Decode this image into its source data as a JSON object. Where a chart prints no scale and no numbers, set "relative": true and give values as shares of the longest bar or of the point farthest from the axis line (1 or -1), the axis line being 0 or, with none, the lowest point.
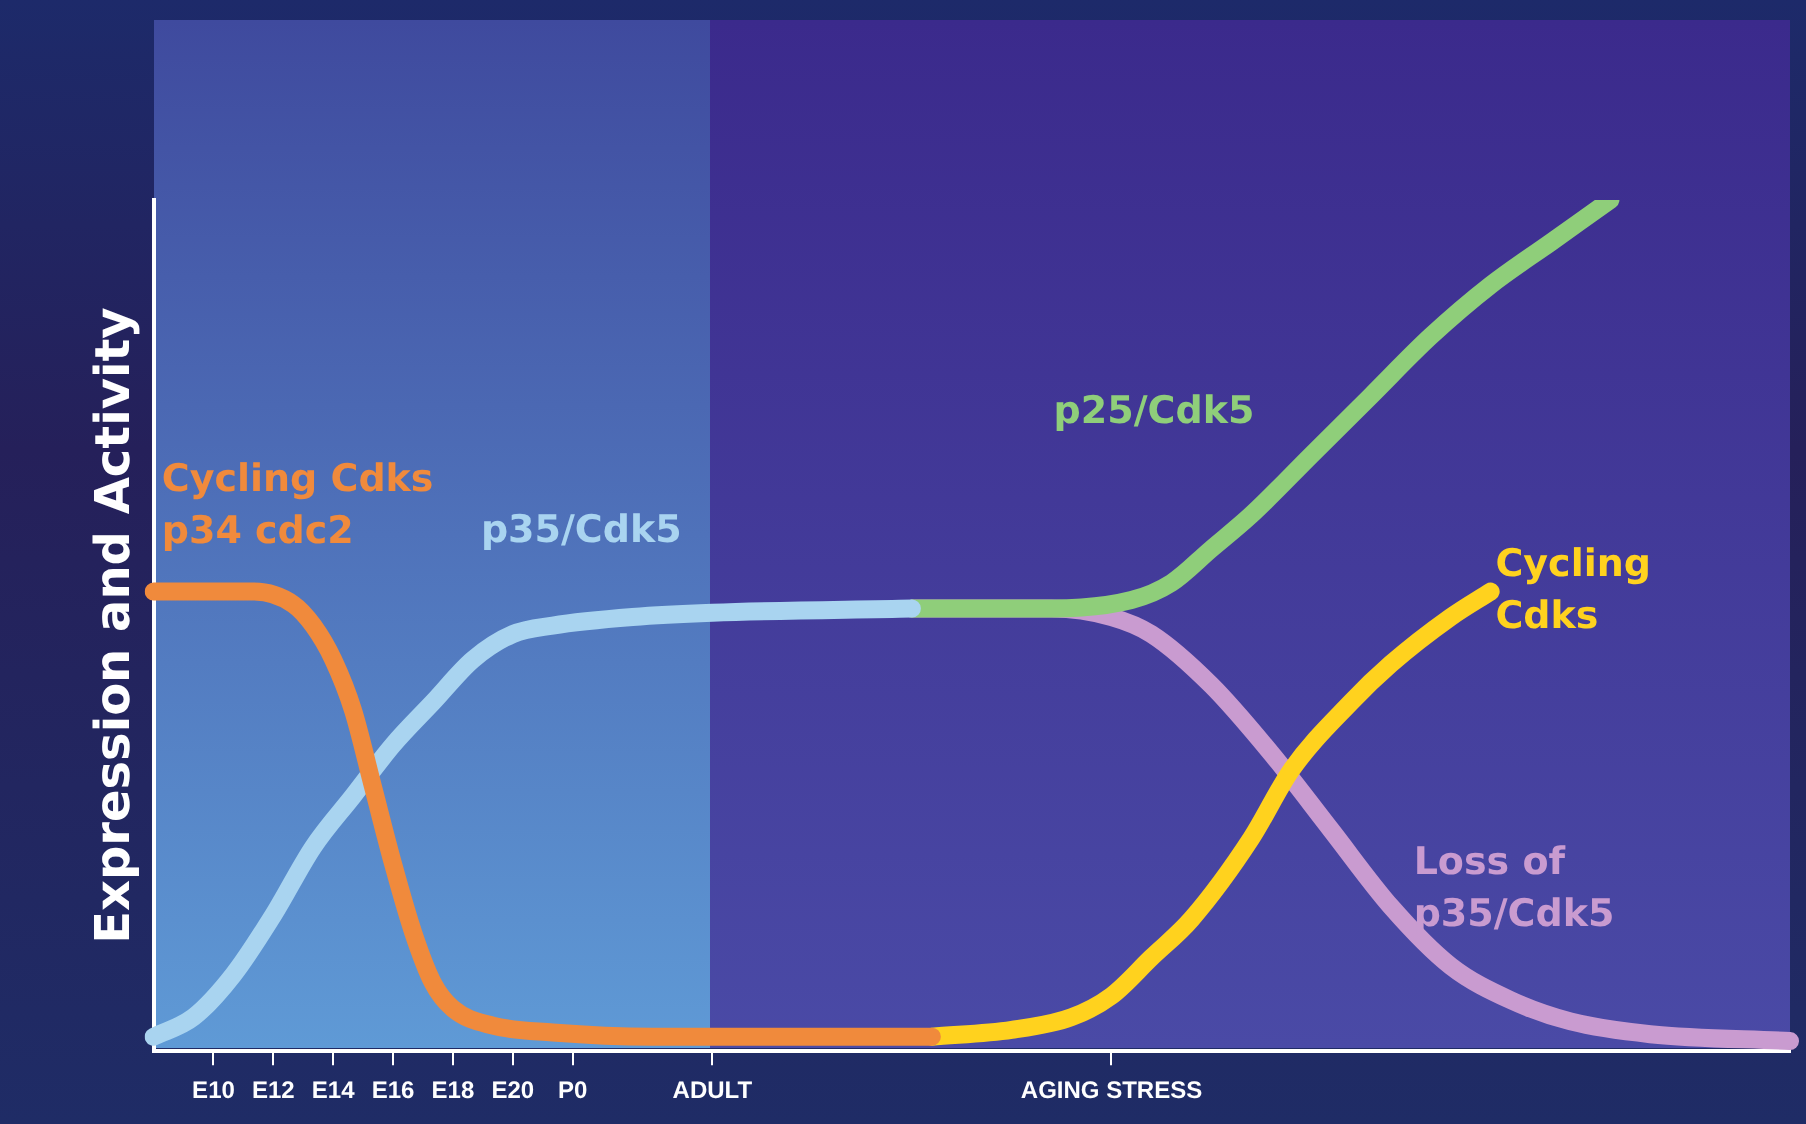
{
  "chart_data": {
    "type": "line",
    "relative": true,
    "ylabel": "Expression and Activity",
    "marker": "none",
    "line_style": "solid",
    "legend": false,
    "grid": false,
    "categories": [
      null,
      null,
      null,
      "E10",
      null,
      null,
      "E12",
      null,
      null,
      "E14",
      null,
      null,
      "E16",
      null,
      null,
      "E18",
      null,
      null,
      "E20",
      null,
      null,
      "P0",
      null,
      null,
      null,
      null,
      null,
      null,
      "ADULT",
      null,
      null,
      null,
      null,
      null,
      null,
      null,
      null,
      null,
      null,
      null,
      null,
      null,
      null,
      null,
      null,
      null,
      null,
      null,
      "AGING STRESS",
      null,
      null,
      null,
      null,
      null,
      null,
      null,
      null,
      null,
      null,
      null,
      null,
      null,
      null,
      null,
      null,
      null,
      null,
      null,
      null,
      null,
      null,
      null,
      null,
      null,
      null,
      null,
      null,
      null,
      null,
      null,
      null,
      null,
      null
    ],
    "series": [
      {
        "name": "Cycling Cdks p34 cdc2",
        "color": "#f08a3c",
        "values": [
          0.54,
          null,
          null,
          null,
          null,
          0.54,
          null,
          0.525,
          0.5,
          0.46,
          0.4,
          0.31,
          0.22,
          0.14,
          0.08,
          0.05,
          null,
          0.03,
          null,
          null,
          0.022,
          null,
          null,
          null,
          null,
          0.017,
          null,
          null,
          null,
          null,
          null,
          null,
          null,
          null,
          null,
          null,
          null,
          null,
          null,
          0.017,
          null,
          null,
          null,
          null,
          null,
          null,
          null,
          null,
          null,
          null,
          null,
          null,
          null,
          null,
          null,
          null,
          null,
          null,
          null,
          null,
          null,
          null,
          null,
          null,
          null,
          null,
          null,
          null,
          null,
          null,
          null,
          null,
          null,
          null,
          null,
          null,
          null,
          null,
          null,
          null,
          null,
          null,
          null
        ]
      },
      {
        "name": "p35/Cdk5",
        "color": "#a9d4f0",
        "values": [
          0.017,
          null,
          0.04,
          null,
          0.09,
          null,
          0.16,
          null,
          0.24,
          null,
          0.3,
          null,
          0.36,
          null,
          0.41,
          null,
          0.46,
          null,
          0.49,
          null,
          0.5,
          null,
          null,
          null,
          0.51,
          null,
          null,
          null,
          0.515,
          null,
          null,
          null,
          null,
          null,
          null,
          null,
          null,
          null,
          0.52,
          null,
          null,
          null,
          null,
          null,
          null,
          null,
          null,
          null,
          null,
          null,
          null,
          null,
          null,
          null,
          null,
          null,
          null,
          null,
          null,
          null,
          null,
          null,
          null,
          null,
          null,
          null,
          null,
          null,
          null,
          null,
          null,
          null,
          null,
          null,
          null,
          null,
          null,
          null,
          null,
          null,
          null,
          null,
          null
        ]
      },
      {
        "name": "p25/Cdk5",
        "color": "#8fce7a",
        "values": [
          null,
          null,
          null,
          null,
          null,
          null,
          null,
          null,
          null,
          null,
          null,
          null,
          null,
          null,
          null,
          null,
          null,
          null,
          null,
          null,
          null,
          null,
          null,
          null,
          null,
          null,
          null,
          null,
          null,
          null,
          null,
          null,
          null,
          null,
          null,
          null,
          null,
          null,
          0.52,
          null,
          null,
          null,
          null,
          null,
          0.52,
          null,
          null,
          null,
          null,
          0.53,
          null,
          0.55,
          null,
          0.59,
          null,
          0.63,
          null,
          null,
          0.7,
          null,
          null,
          0.77,
          null,
          null,
          0.84,
          null,
          null,
          0.9,
          null,
          null,
          0.95,
          null,
          null,
          1,
          null,
          null,
          null,
          null,
          null,
          null,
          null,
          null,
          null
        ]
      },
      {
        "name": "Cycling Cdks",
        "color": "#ffd21e",
        "values": [
          null,
          null,
          null,
          null,
          null,
          null,
          null,
          null,
          null,
          null,
          null,
          null,
          null,
          null,
          null,
          null,
          null,
          null,
          null,
          null,
          null,
          null,
          null,
          null,
          null,
          null,
          null,
          null,
          null,
          null,
          null,
          null,
          null,
          null,
          null,
          null,
          null,
          null,
          null,
          0.017,
          null,
          null,
          null,
          0.025,
          null,
          null,
          0.04,
          null,
          0.065,
          null,
          0.11,
          null,
          0.155,
          null,
          null,
          0.25,
          null,
          0.33,
          null,
          null,
          0.41,
          null,
          0.455,
          null,
          null,
          0.51,
          null,
          0.54,
          null,
          null,
          null,
          null,
          null,
          null,
          null,
          null,
          null,
          null,
          null,
          null,
          null,
          null,
          null
        ]
      },
      {
        "name": "Loss of p35/Cdk5",
        "color": "#c99bd0",
        "values": [
          null,
          null,
          null,
          null,
          null,
          null,
          null,
          null,
          null,
          null,
          null,
          null,
          null,
          null,
          null,
          null,
          null,
          null,
          null,
          null,
          null,
          null,
          null,
          null,
          null,
          null,
          null,
          null,
          null,
          null,
          null,
          null,
          null,
          null,
          null,
          null,
          null,
          null,
          0.52,
          null,
          null,
          null,
          null,
          null,
          null,
          0.52,
          null,
          null,
          0.51,
          null,
          0.49,
          null,
          null,
          0.43,
          null,
          null,
          0.35,
          null,
          null,
          0.26,
          null,
          null,
          0.17,
          null,
          null,
          0.1,
          null,
          null,
          0.06,
          null,
          null,
          0.035,
          null,
          null,
          null,
          0.02,
          null,
          null,
          null,
          null,
          null,
          null,
          0.012
        ]
      }
    ]
  }
}
